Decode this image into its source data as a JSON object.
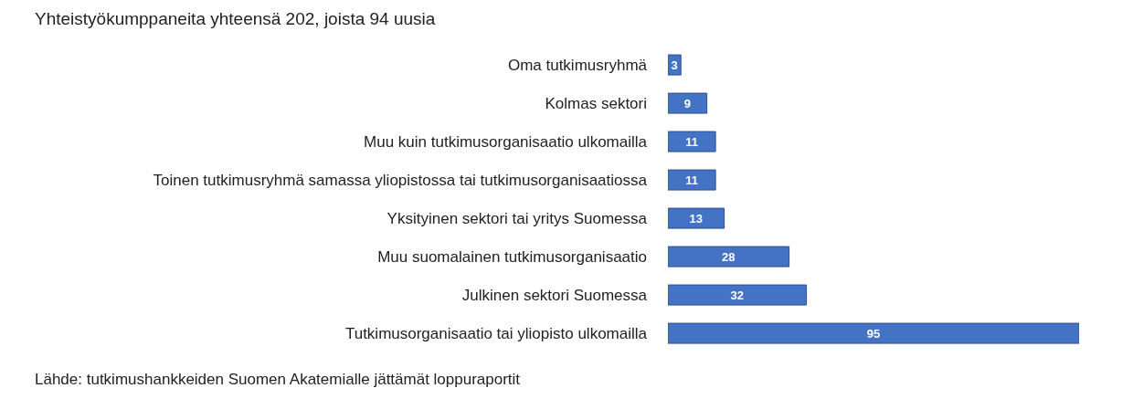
{
  "chart_data": {
    "type": "bar",
    "orientation": "horizontal",
    "title": "Yhteistyökumppaneita yhteensä 202, joista 94 uusia",
    "categories": [
      "Oma tutkimusryhmä",
      "Kolmas sektori",
      "Muu kuin tutkimusorganisaatio ulkomailla",
      "Toinen tutkimusryhmä samassa yliopistossa tai tutkimusorganisaatiossa",
      "Yksityinen sektori tai yritys Suomessa",
      "Muu suomalainen tutkimusorganisaatio",
      "Julkinen sektori Suomessa",
      "Tutkimusorganisaatio tai yliopisto ulkomailla"
    ],
    "values": [
      3,
      9,
      11,
      11,
      13,
      28,
      32,
      95
    ],
    "color": "#4472c4",
    "data_labels": true,
    "annotations": [
      "Lähde: tutkimushankkeiden Suomen Akatemialle jättämät loppuraportit"
    ]
  }
}
